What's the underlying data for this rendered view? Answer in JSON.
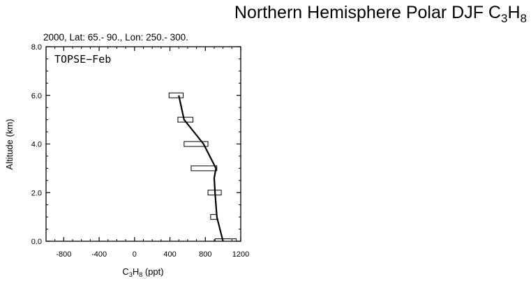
{
  "title": {
    "prefix": "Northern Hemisphere Polar DJF C",
    "sub1": "3",
    "mid": "H",
    "sub2": "8"
  },
  "chart_data": {
    "type": "line",
    "subtitle": "2000, Lat: 65.- 90., Lon: 250.- 300.",
    "annotation": "TOPSE−Feb",
    "xlabel": {
      "prefix": "C",
      "sub1": "3",
      "mid": "H",
      "sub2": "8",
      "suffix": " (ppt)"
    },
    "ylabel": "Altitude (km)",
    "xlim": [
      -1000,
      1200
    ],
    "ylim": [
      0,
      8
    ],
    "xticks": [
      -800,
      -400,
      0,
      400,
      800,
      1200
    ],
    "xtick_labels": [
      "-800",
      "-400",
      "0",
      "400",
      "800",
      "1200"
    ],
    "yticks": [
      0,
      2,
      4,
      6,
      8
    ],
    "ytick_labels": [
      "0.0",
      "2.0",
      "4.0",
      "6.0",
      "8.0"
    ],
    "series": [
      {
        "type": "line",
        "x": [
          1000,
          930,
          910,
          900,
          920,
          780,
          560,
          500
        ],
        "y": [
          0.0,
          1.0,
          2.0,
          2.6,
          3.0,
          4.0,
          5.0,
          6.0
        ]
      }
    ],
    "boxes": [
      {
        "xmin": 910,
        "xmax": 1150,
        "y": 0.0
      },
      {
        "xmin": 860,
        "xmax": 930,
        "y": 1.0
      },
      {
        "xmin": 830,
        "xmax": 980,
        "y": 2.0
      },
      {
        "xmin": 640,
        "xmax": 930,
        "y": 3.0
      },
      {
        "xmin": 560,
        "xmax": 830,
        "y": 4.0
      },
      {
        "xmin": 490,
        "xmax": 660,
        "y": 5.0
      },
      {
        "xmin": 390,
        "xmax": 550,
        "y": 6.0
      }
    ]
  }
}
